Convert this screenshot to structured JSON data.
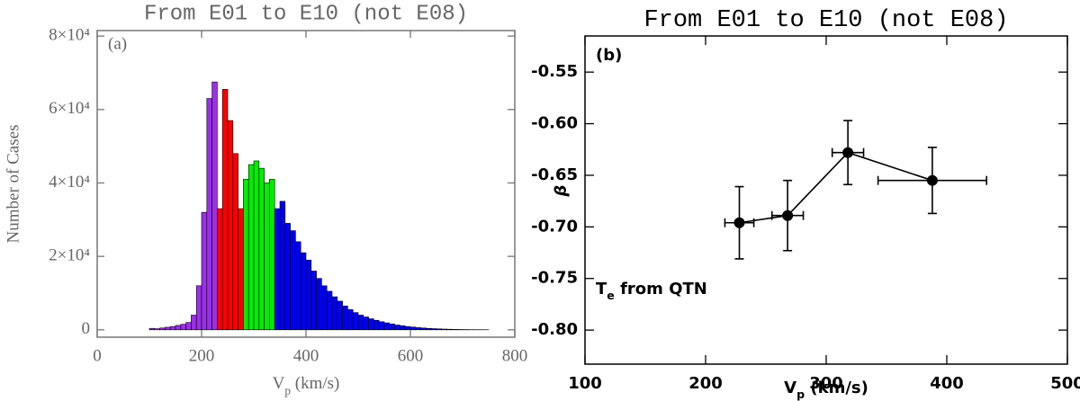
{
  "chart_data": [
    {
      "type": "histogram",
      "title": "From E01 to E10 (not E08)",
      "xlabel": [
        "V",
        "p",
        " (km/s)"
      ],
      "ylabel": "Number of Cases",
      "annotation": "(a)",
      "xlim": [
        0,
        800
      ],
      "xticks": [
        0,
        200,
        400,
        600,
        800
      ],
      "ylim": [
        -2000,
        81500
      ],
      "yticks": [
        0,
        {
          "value": 20000,
          "label": "2×10⁴"
        },
        {
          "value": 40000,
          "label": "4×10⁴"
        },
        {
          "value": 60000,
          "label": "6×10⁴"
        },
        {
          "value": 80000,
          "label": "8×10⁴"
        }
      ],
      "series": [
        {
          "color": "#9b30e8",
          "bins": [
            100,
            110,
            120,
            130,
            140,
            150,
            160,
            170,
            180,
            190,
            200,
            210,
            220,
            230
          ],
          "values": [
            400,
            300,
            500,
            700,
            900,
            1200,
            1500,
            2000,
            4000,
            12000,
            32000,
            63000,
            67500
          ]
        },
        {
          "color": "#ff0000",
          "bins": [
            230,
            240,
            250,
            260,
            270,
            280
          ],
          "values": [
            33000,
            65500,
            57000,
            48000,
            33000
          ]
        },
        {
          "color": "#00ee00",
          "bins": [
            280,
            290,
            300,
            310,
            320,
            330,
            340
          ],
          "values": [
            41000,
            45000,
            46000,
            44000,
            40000,
            41000
          ]
        },
        {
          "color": "#0000ee",
          "bins": [
            340,
            350,
            360,
            370,
            380,
            390,
            400,
            410,
            420,
            430,
            440,
            450,
            460,
            470,
            480,
            490,
            500,
            510,
            520,
            530,
            540,
            550,
            560,
            570,
            580,
            590,
            600,
            610,
            620,
            630,
            640,
            650,
            660,
            670,
            680,
            690,
            700,
            710,
            720,
            730,
            740,
            750
          ],
          "values": [
            33000,
            35000,
            29000,
            27000,
            24000,
            21000,
            19000,
            16000,
            14000,
            12000,
            10500,
            9000,
            7800,
            6500,
            5500,
            4700,
            4000,
            3500,
            3000,
            2600,
            2200,
            1900,
            1600,
            1300,
            1100,
            900,
            750,
            600,
            500,
            400,
            320,
            260,
            200,
            160,
            120,
            90,
            70,
            50,
            40,
            30,
            20
          ]
        }
      ]
    },
    {
      "type": "scatter",
      "title": "From E01 to E10 (not E08)",
      "xlabel": [
        "V",
        "p",
        " (km/s)"
      ],
      "ylabel": "β",
      "annotation": "(b)",
      "note": [
        "T",
        "e",
        " from QTN"
      ],
      "xlim": [
        100,
        500
      ],
      "xticks": [
        100,
        200,
        300,
        400,
        500
      ],
      "ylim": [
        -0.833,
        -0.515
      ],
      "yticks": [
        -0.55,
        {
          "value": -0.6,
          "label": "-0.60"
        },
        -0.65,
        {
          "value": -0.7,
          "label": "-0.70"
        },
        -0.75,
        {
          "value": -0.8,
          "label": "-0.80"
        }
      ],
      "color": "#000000",
      "x": [
        228,
        268,
        318,
        388
      ],
      "xerr": [
        12,
        13,
        13,
        45
      ],
      "values": [
        -0.696,
        -0.689,
        -0.628,
        -0.655
      ],
      "yerr": [
        0.035,
        0.034,
        0.031,
        0.032
      ]
    }
  ]
}
